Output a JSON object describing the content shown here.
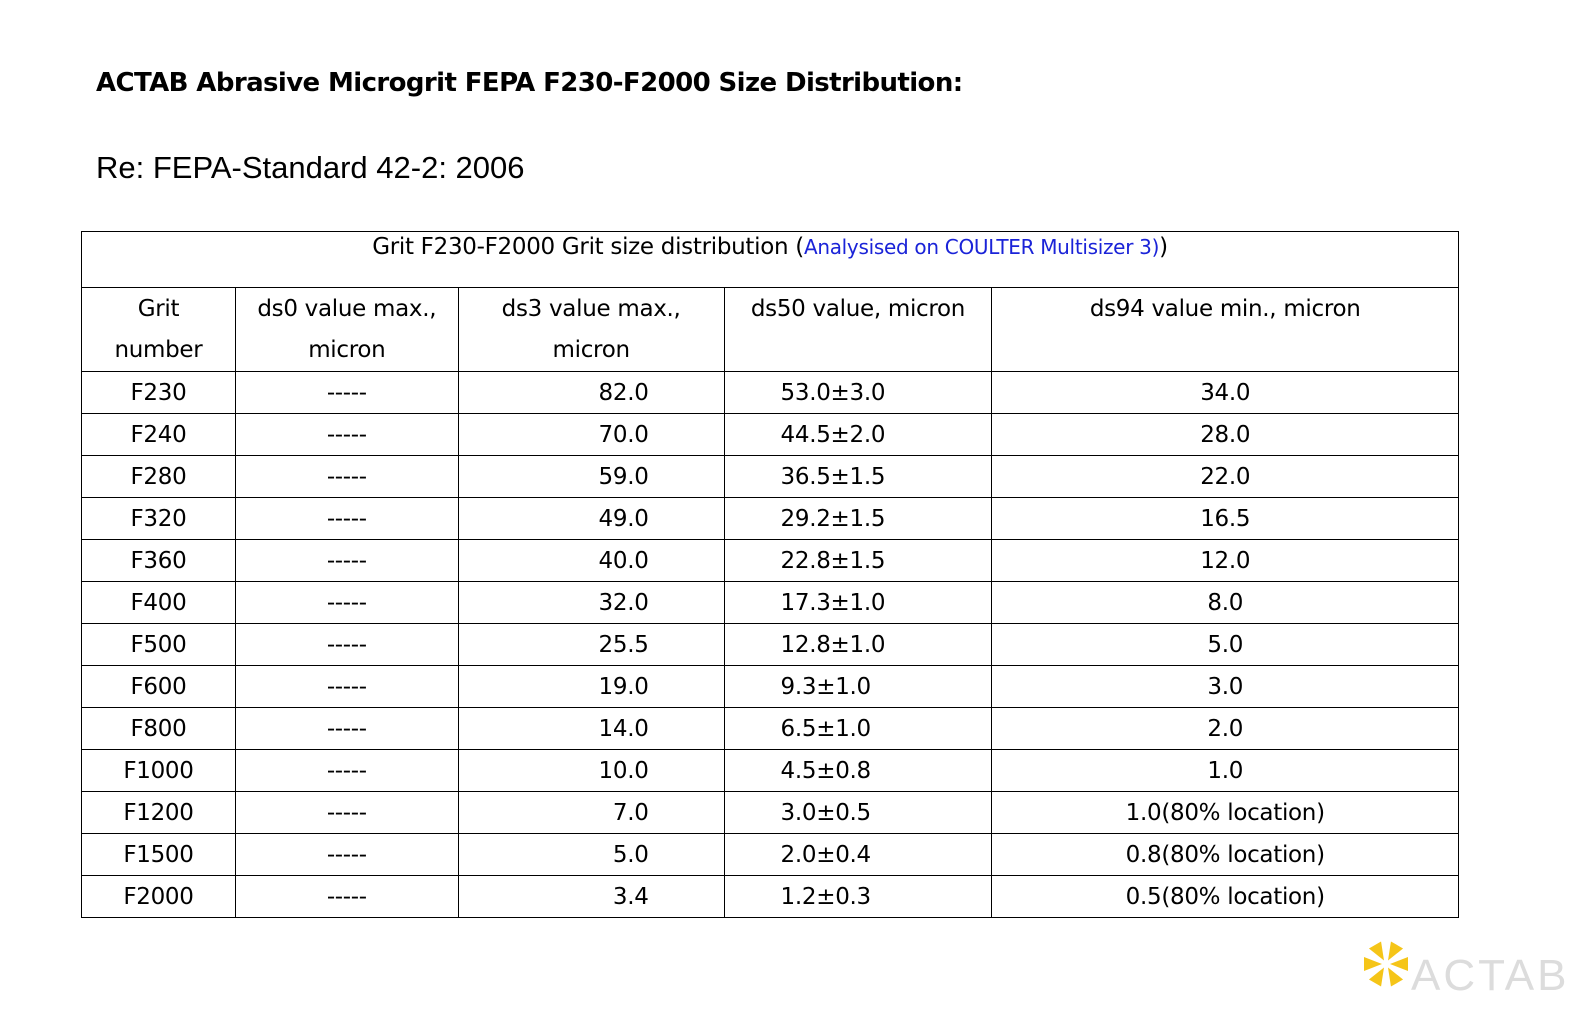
{
  "document": {
    "title": "ACTAB Abrasive Microgrit FEPA F230-F2000 Size Distribution:",
    "subtitle": "Re: FEPA-Standard 42-2: 2006"
  },
  "table": {
    "caption_prefix": "Grit F230-F2000 Grit size distribution (",
    "caption_link": "Analysised on COULTER Multisizer 3)",
    "caption_suffix": ")",
    "headers": [
      [
        "Grit",
        "number"
      ],
      [
        "ds0 value max.,",
        "micron"
      ],
      [
        "ds3 value max.,",
        "micron"
      ],
      [
        "ds50 value, micron"
      ],
      [
        "ds94 value min., micron"
      ]
    ],
    "rows": [
      [
        "F230",
        "-----",
        "82.0",
        "53.0±3.0",
        "34.0"
      ],
      [
        "F240",
        "-----",
        "70.0",
        "44.5±2.0",
        "28.0"
      ],
      [
        "F280",
        "-----",
        "59.0",
        "36.5±1.5",
        "22.0"
      ],
      [
        "F320",
        "-----",
        "49.0",
        "29.2±1.5",
        "16.5"
      ],
      [
        "F360",
        "-----",
        "40.0",
        "22.8±1.5",
        "12.0"
      ],
      [
        "F400",
        "-----",
        "32.0",
        "17.3±1.0",
        "8.0"
      ],
      [
        "F500",
        "-----",
        "25.5",
        "12.8±1.0",
        "5.0"
      ],
      [
        "F600",
        "-----",
        "19.0",
        "9.3±1.0",
        "3.0"
      ],
      [
        "F800",
        "-----",
        "14.0",
        "6.5±1.0",
        "2.0"
      ],
      [
        "F1000",
        "-----",
        "10.0",
        "4.5±0.8",
        "1.0"
      ],
      [
        "F1200",
        "-----",
        "7.0",
        "3.0±0.5",
        "1.0(80% location)"
      ],
      [
        "F1500",
        "-----",
        "5.0",
        "2.0±0.4",
        "0.8(80% location)"
      ],
      [
        "F2000",
        "-----",
        "3.4",
        "1.2±0.3",
        "0.5(80% location)"
      ]
    ]
  },
  "logo": {
    "text": "ACTAB",
    "icon": "actab-star-logo",
    "colors": {
      "petal": "#f5c518",
      "text": "#dcdcdc"
    }
  },
  "colors": {
    "link": "#1a23d8",
    "border": "#000000"
  }
}
